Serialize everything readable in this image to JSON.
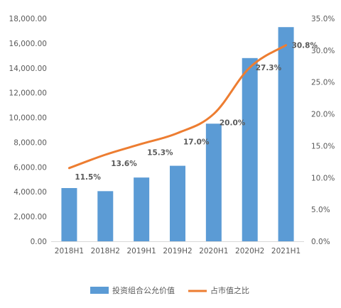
{
  "chart_data": {
    "type": "bar",
    "categories": [
      "2018H1",
      "2018H2",
      "2019H1",
      "2019H2",
      "2020H1",
      "2020H2",
      "2021H1"
    ],
    "series": [
      {
        "name": "投资组合公允价值",
        "type": "bar",
        "axis": "left",
        "color": "#5b9bd5",
        "values": [
          4300,
          4050,
          5150,
          6100,
          9500,
          14800,
          17300
        ]
      },
      {
        "name": "占市值之比",
        "type": "line",
        "axis": "right",
        "color": "#ed7d31",
        "values": [
          11.5,
          13.6,
          15.3,
          17.0,
          20.0,
          27.3,
          30.8
        ],
        "labels": [
          "11.5%",
          "13.6%",
          "15.3%",
          "17.0%",
          "20.0%",
          "27.3%",
          "30.8%"
        ]
      }
    ],
    "y_left": {
      "ylim": [
        0,
        18000
      ],
      "ticks": [
        "0.00",
        "2,000.00",
        "4,000.00",
        "6,000.00",
        "8,000.00",
        "10,000.00",
        "12,000.00",
        "14,000.00",
        "16,000.00",
        "18,000.00"
      ]
    },
    "y_right": {
      "ylim": [
        0,
        35
      ],
      "ticks": [
        "0.0%",
        "5.0%",
        "10.0%",
        "15.0%",
        "20.0%",
        "25.0%",
        "30.0%",
        "35.0%"
      ]
    },
    "grid": false,
    "legend_position": "bottom"
  }
}
